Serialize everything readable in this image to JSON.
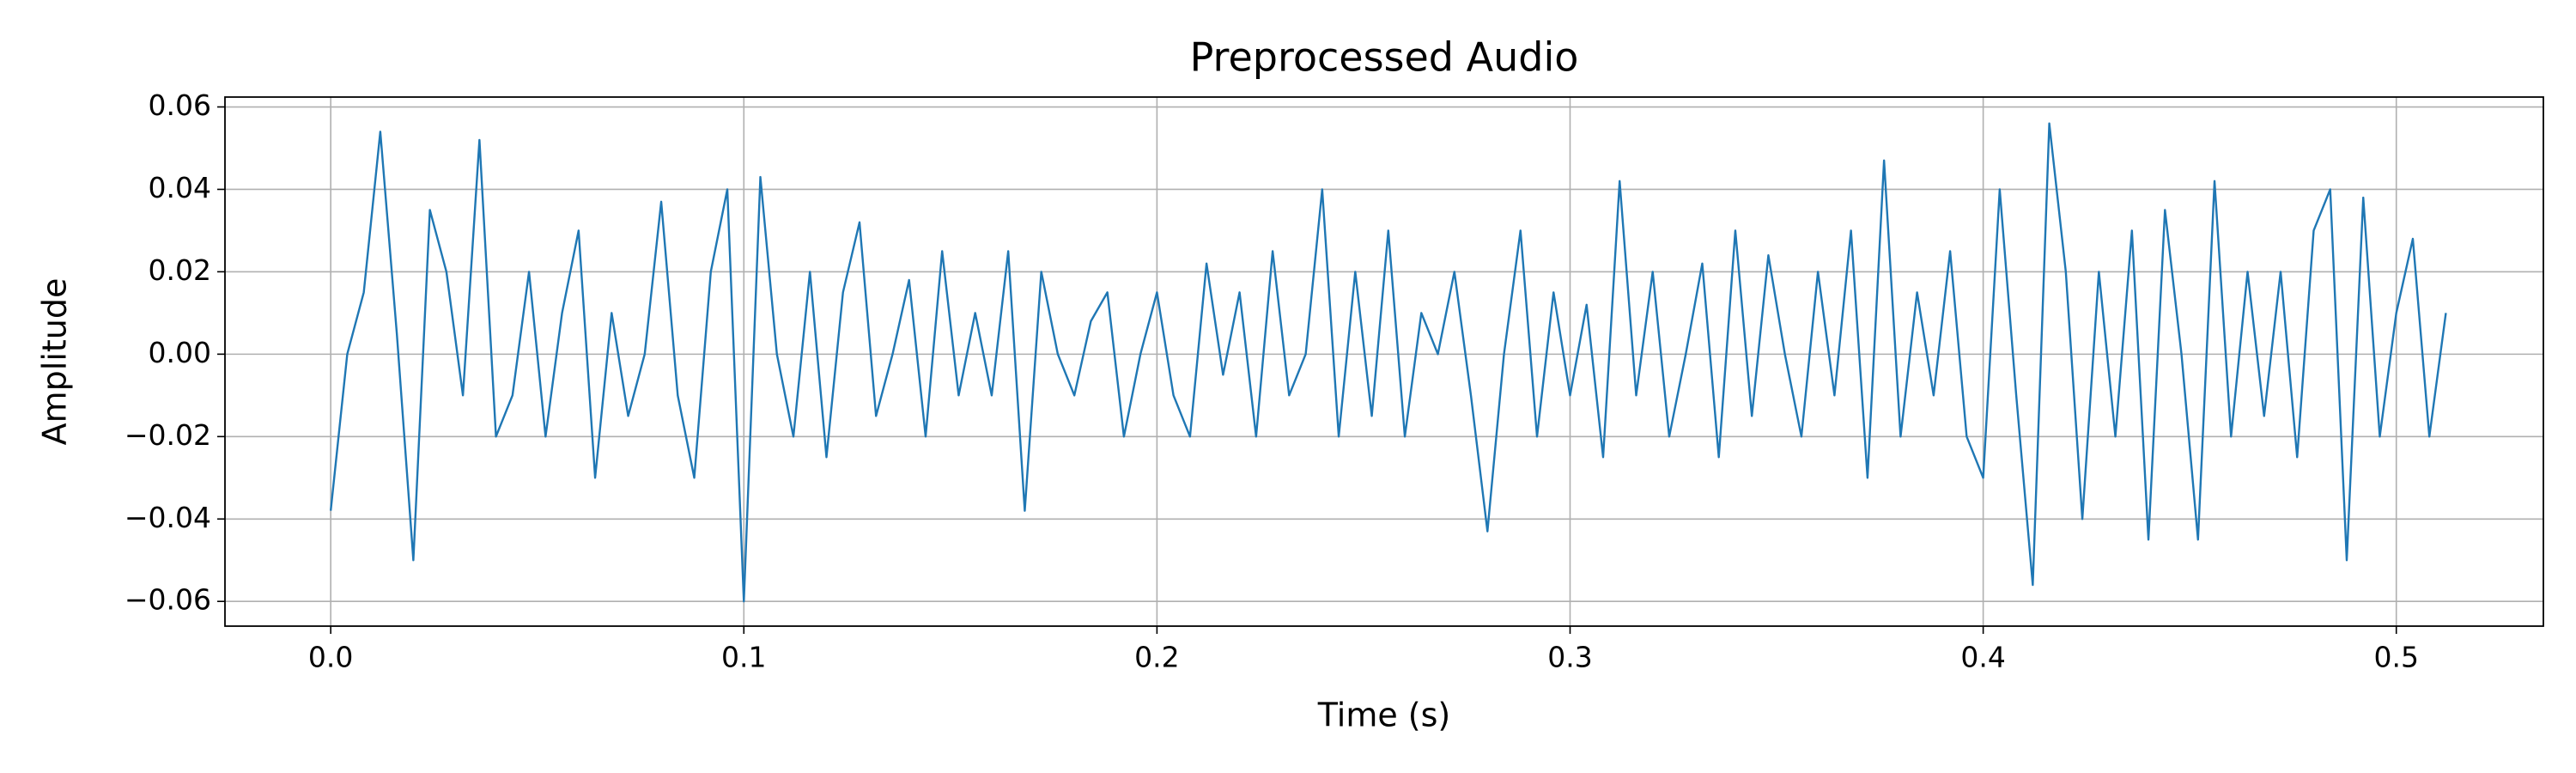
{
  "chart_data": {
    "type": "line",
    "title": "Preprocessed Audio",
    "x_label": "Time (s)",
    "y_label": "Amplitude",
    "x": [
      0.0,
      0.004,
      0.008,
      0.012,
      0.016,
      0.02,
      0.024,
      0.028,
      0.032,
      0.036,
      0.04,
      0.044,
      0.048,
      0.052,
      0.056,
      0.06,
      0.064,
      0.068,
      0.072,
      0.076,
      0.08,
      0.084,
      0.088,
      0.092,
      0.096,
      0.1,
      0.104,
      0.108,
      0.112,
      0.116,
      0.12,
      0.124,
      0.128,
      0.132,
      0.136,
      0.14,
      0.144,
      0.148,
      0.152,
      0.156,
      0.16,
      0.164,
      0.168,
      0.172,
      0.176,
      0.18,
      0.184,
      0.188,
      0.192,
      0.196,
      0.2,
      0.204,
      0.208,
      0.212,
      0.216,
      0.22,
      0.224,
      0.228,
      0.232,
      0.236,
      0.24,
      0.244,
      0.248,
      0.252,
      0.256,
      0.26,
      0.264,
      0.268,
      0.272,
      0.276,
      0.28,
      0.284,
      0.288,
      0.292,
      0.296,
      0.3,
      0.304,
      0.308,
      0.312,
      0.316,
      0.32,
      0.324,
      0.328,
      0.332,
      0.336,
      0.34,
      0.344,
      0.348,
      0.352,
      0.356,
      0.36,
      0.364,
      0.368,
      0.372,
      0.376,
      0.38,
      0.384,
      0.388,
      0.392,
      0.396,
      0.4,
      0.404,
      0.408,
      0.412,
      0.416,
      0.42,
      0.424,
      0.428,
      0.432,
      0.436,
      0.44,
      0.444,
      0.448,
      0.452,
      0.456,
      0.46,
      0.464,
      0.468,
      0.472,
      0.476,
      0.48,
      0.484,
      0.488,
      0.492,
      0.496,
      0.5,
      0.504,
      0.508,
      0.512
    ],
    "series": [
      {
        "name": "Amplitude",
        "color": "#1f77b4",
        "values": [
          -0.038,
          0.0,
          0.015,
          0.054,
          0.005,
          -0.05,
          0.035,
          0.02,
          -0.01,
          0.052,
          -0.02,
          -0.01,
          0.02,
          -0.02,
          0.01,
          0.03,
          -0.03,
          0.01,
          -0.015,
          0.0,
          0.037,
          -0.01,
          -0.03,
          0.02,
          0.04,
          -0.06,
          0.043,
          0.0,
          -0.02,
          0.02,
          -0.025,
          0.015,
          0.032,
          -0.015,
          0.0,
          0.018,
          -0.02,
          0.025,
          -0.01,
          0.01,
          -0.01,
          0.025,
          -0.038,
          0.02,
          0.0,
          -0.01,
          0.008,
          0.015,
          -0.02,
          0.0,
          0.015,
          -0.01,
          -0.02,
          0.022,
          -0.005,
          0.015,
          -0.02,
          0.025,
          -0.01,
          0.0,
          0.04,
          -0.02,
          0.02,
          -0.015,
          0.03,
          -0.02,
          0.01,
          0.0,
          0.02,
          -0.01,
          -0.043,
          0.0,
          0.03,
          -0.02,
          0.015,
          -0.01,
          0.012,
          -0.025,
          0.042,
          -0.01,
          0.02,
          -0.02,
          0.0,
          0.022,
          -0.025,
          0.03,
          -0.015,
          0.024,
          0.0,
          -0.02,
          0.02,
          -0.01,
          0.03,
          -0.03,
          0.047,
          -0.02,
          0.015,
          -0.01,
          0.025,
          -0.02,
          -0.03,
          0.04,
          -0.01,
          -0.056,
          0.056,
          0.02,
          -0.04,
          0.02,
          -0.02,
          0.03,
          -0.045,
          0.035,
          0.0,
          -0.045,
          0.042,
          -0.02,
          0.02,
          -0.015,
          0.02,
          -0.025,
          0.03,
          0.04,
          -0.05,
          0.038,
          -0.02,
          0.01,
          0.028,
          -0.02,
          0.01
        ]
      }
    ],
    "xlim": [
      -0.0256,
      0.5356
    ],
    "ylim": [
      -0.066,
      0.0624
    ],
    "xticks": [
      {
        "value": 0,
        "label": "0.0"
      },
      0.1,
      0.2,
      0.3,
      0.4,
      0.5
    ],
    "yticks": [
      {
        "value": -0.06,
        "label": "−0.06"
      },
      {
        "value": -0.04,
        "label": "−0.04"
      },
      {
        "value": -0.02,
        "label": "−0.02"
      },
      {
        "value": 0,
        "label": "0.00"
      },
      0.02,
      0.04,
      0.06
    ],
    "grid": true
  }
}
